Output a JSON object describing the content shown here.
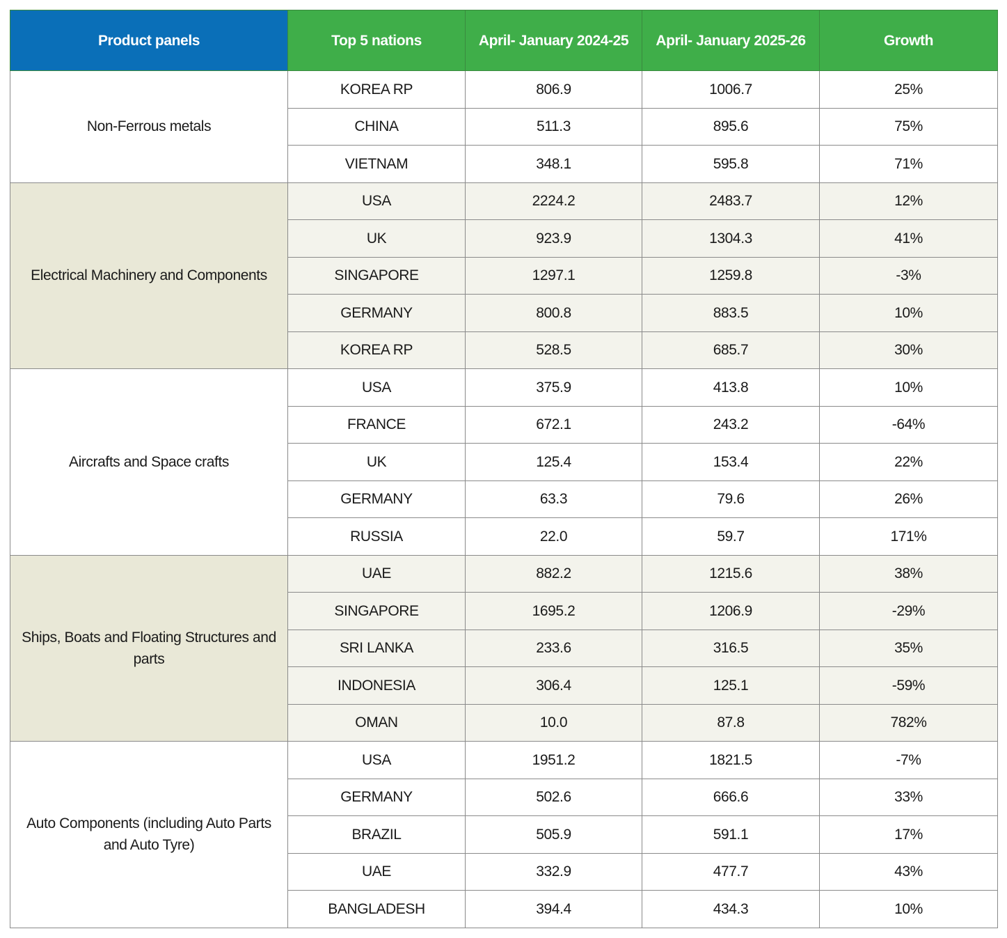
{
  "header": {
    "columns": [
      "Product panels",
      "Top 5 nations",
      "April- January 2024-25",
      "April- January 2025-26",
      "Growth"
    ]
  },
  "groups": [
    {
      "panel": "Non-Ferrous metals",
      "rows": [
        [
          "KOREA RP",
          "806.9",
          "1006.7",
          "25%"
        ],
        [
          "CHINA",
          "511.3",
          "895.6",
          "75%"
        ],
        [
          "VIETNAM",
          "348.1",
          "595.8",
          "71%"
        ]
      ]
    },
    {
      "panel": "Electrical Machinery and Components",
      "rows": [
        [
          "USA",
          "2224.2",
          "2483.7",
          "12%"
        ],
        [
          "UK",
          "923.9",
          "1304.3",
          "41%"
        ],
        [
          "SINGAPORE",
          "1297.1",
          "1259.8",
          "-3%"
        ],
        [
          "GERMANY",
          "800.8",
          "883.5",
          "10%"
        ],
        [
          "KOREA RP",
          "528.5",
          "685.7",
          "30%"
        ]
      ]
    },
    {
      "panel": "Aircrafts and Space crafts",
      "rows": [
        [
          "USA",
          "375.9",
          "413.8",
          "10%"
        ],
        [
          "FRANCE",
          "672.1",
          "243.2",
          "-64%"
        ],
        [
          "UK",
          "125.4",
          "153.4",
          "22%"
        ],
        [
          "GERMANY",
          "63.3",
          "79.6",
          "26%"
        ],
        [
          "RUSSIA",
          "22.0",
          "59.7",
          "171%"
        ]
      ]
    },
    {
      "panel": "Ships, Boats and Floating Structures and parts",
      "rows": [
        [
          "UAE",
          "882.2",
          "1215.6",
          "38%"
        ],
        [
          "SINGAPORE",
          "1695.2",
          "1206.9",
          "-29%"
        ],
        [
          "SRI LANKA",
          "233.6",
          "316.5",
          "35%"
        ],
        [
          "INDONESIA",
          "306.4",
          "125.1",
          "-59%"
        ],
        [
          "OMAN",
          "10.0",
          "87.8",
          "782%"
        ]
      ]
    },
    {
      "panel": "Auto Components (including Auto Parts and Auto Tyre)",
      "rows": [
        [
          "USA",
          "1951.2",
          "1821.5",
          "-7%"
        ],
        [
          "GERMANY",
          "502.6",
          "666.6",
          "33%"
        ],
        [
          "BRAZIL",
          "505.9",
          "591.1",
          "17%"
        ],
        [
          "UAE",
          "332.9",
          "477.7",
          "43%"
        ],
        [
          "BANGLADESH",
          "394.4",
          "434.3",
          "10%"
        ]
      ]
    }
  ]
}
